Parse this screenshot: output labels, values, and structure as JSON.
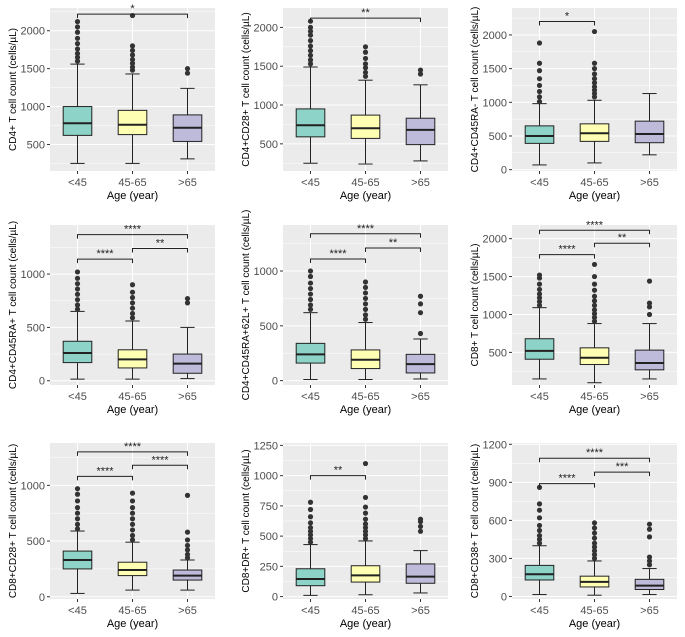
{
  "colors": {
    "panel_bg": "#ebebeb",
    "grid": "#ffffff",
    "box_fills": [
      "#8dd3c7",
      "#ffffb3",
      "#bebada"
    ],
    "ink": "#222222",
    "tick_text": "#4d4d4d"
  },
  "chart_data": [
    {
      "type": "box",
      "ylabel": "CD4+ T cell count (cells/µL)",
      "xlabel": "Age (year)",
      "categories": [
        "<45",
        "45-65",
        ">65"
      ],
      "ylim": [
        150,
        2300
      ],
      "yticks": [
        500,
        1000,
        1500,
        2000
      ],
      "boxes": [
        {
          "whisker_low": 250,
          "q1": 620,
          "median": 780,
          "q3": 1000,
          "whisker_high": 1560,
          "outliers": [
            1600,
            1650,
            1700,
            1760,
            1830,
            1900,
            1980,
            2050,
            2120
          ]
        },
        {
          "whisker_low": 250,
          "q1": 630,
          "median": 760,
          "q3": 950,
          "whisker_high": 1430,
          "outliers": [
            1480,
            1520,
            1570,
            1620,
            1680,
            1740,
            1800,
            2200
          ]
        },
        {
          "whisker_low": 310,
          "q1": 540,
          "median": 720,
          "q3": 890,
          "whisker_high": 1240,
          "outliers": [
            1440,
            1500
          ]
        }
      ],
      "significance": [
        {
          "from": 0,
          "to": 2,
          "label": "*",
          "level": 2220
        }
      ]
    },
    {
      "type": "box",
      "ylabel": "CD4+CD28+ T cell count (cells/µL)",
      "xlabel": "Age (year)",
      "categories": [
        "<45",
        "45-65",
        ">65"
      ],
      "ylim": [
        150,
        2250
      ],
      "yticks": [
        500,
        1000,
        1500,
        2000
      ],
      "boxes": [
        {
          "whisker_low": 250,
          "q1": 590,
          "median": 740,
          "q3": 950,
          "whisker_high": 1490,
          "outliers": [
            1530,
            1580,
            1640,
            1700,
            1760,
            1830,
            1900,
            1950,
            2000,
            2080
          ]
        },
        {
          "whisker_low": 240,
          "q1": 570,
          "median": 700,
          "q3": 870,
          "whisker_high": 1320,
          "outliers": [
            1370,
            1420,
            1480,
            1530,
            1600,
            1680,
            1750
          ]
        },
        {
          "whisker_low": 280,
          "q1": 490,
          "median": 680,
          "q3": 830,
          "whisker_high": 1260,
          "outliers": [
            1400,
            1450
          ]
        }
      ],
      "significance": [
        {
          "from": 0,
          "to": 2,
          "label": "**",
          "level": 2120
        }
      ]
    },
    {
      "type": "box",
      "ylabel": "CD4+CD45RA- T cell count (cells/µL)",
      "xlabel": "Age (year)",
      "categories": [
        "<45",
        "45-65",
        ">65"
      ],
      "ylim": [
        -20,
        2400
      ],
      "yticks": [
        0,
        500,
        1000,
        1500,
        2000
      ],
      "boxes": [
        {
          "whisker_low": 70,
          "q1": 390,
          "median": 500,
          "q3": 650,
          "whisker_high": 980,
          "outliers": [
            1010,
            1080,
            1160,
            1250,
            1350,
            1470,
            1580,
            1880
          ]
        },
        {
          "whisker_low": 100,
          "q1": 420,
          "median": 540,
          "q3": 680,
          "whisker_high": 1030,
          "outliers": [
            1080,
            1130,
            1180,
            1230,
            1290,
            1350,
            1420,
            1500,
            1580,
            2050
          ]
        },
        {
          "whisker_low": 220,
          "q1": 400,
          "median": 530,
          "q3": 720,
          "whisker_high": 1130,
          "outliers": []
        }
      ],
      "significance": [
        {
          "from": 0,
          "to": 1,
          "label": "*",
          "level": 2200
        }
      ]
    },
    {
      "type": "box",
      "ylabel": "CD4+CD45RA+ T cell count (cells/µL)",
      "xlabel": "Age (year)",
      "categories": [
        "<45",
        "45-65",
        ">65"
      ],
      "ylim": [
        -40,
        1460
      ],
      "yticks": [
        0,
        500,
        1000
      ],
      "boxes": [
        {
          "whisker_low": 15,
          "q1": 170,
          "median": 260,
          "q3": 370,
          "whisker_high": 650,
          "outliers": [
            670,
            710,
            760,
            810,
            860,
            910,
            960,
            1020
          ]
        },
        {
          "whisker_low": 15,
          "q1": 120,
          "median": 200,
          "q3": 290,
          "whisker_high": 560,
          "outliers": [
            590,
            630,
            680,
            730,
            780,
            830,
            900
          ]
        },
        {
          "whisker_low": 20,
          "q1": 70,
          "median": 160,
          "q3": 250,
          "whisker_high": 500,
          "outliers": [
            730,
            770
          ]
        }
      ],
      "significance": [
        {
          "from": 0,
          "to": 1,
          "label": "****",
          "level": 1140
        },
        {
          "from": 1,
          "to": 2,
          "label": "**",
          "level": 1240
        },
        {
          "from": 0,
          "to": 2,
          "label": "****",
          "level": 1370
        }
      ]
    },
    {
      "type": "box",
      "ylabel": "CD4+CD45RA+62L+ T cell count (cells/µL)",
      "xlabel": "Age (year)",
      "categories": [
        "<45",
        "45-65",
        ">65"
      ],
      "ylim": [
        -40,
        1420
      ],
      "yticks": [
        0,
        500,
        1000
      ],
      "boxes": [
        {
          "whisker_low": 10,
          "q1": 160,
          "median": 240,
          "q3": 340,
          "whisker_high": 620,
          "outliers": [
            650,
            690,
            740,
            790,
            840,
            890,
            950,
            1000
          ]
        },
        {
          "whisker_low": 10,
          "q1": 110,
          "median": 190,
          "q3": 280,
          "whisker_high": 530,
          "outliers": [
            560,
            600,
            650,
            700,
            750,
            800,
            850,
            900
          ]
        },
        {
          "whisker_low": 15,
          "q1": 70,
          "median": 150,
          "q3": 240,
          "whisker_high": 380,
          "outliers": [
            430,
            620,
            700,
            770
          ]
        }
      ],
      "significance": [
        {
          "from": 0,
          "to": 1,
          "label": "****",
          "level": 1110
        },
        {
          "from": 1,
          "to": 2,
          "label": "**",
          "level": 1210
        },
        {
          "from": 0,
          "to": 2,
          "label": "****",
          "level": 1340
        }
      ]
    },
    {
      "type": "box",
      "ylabel": "CD8+ T cell count (cells/µL)",
      "xlabel": "Age (year)",
      "categories": [
        "<45",
        "45-65",
        ">65"
      ],
      "ylim": [
        70,
        2180
      ],
      "yticks": [
        500,
        1000,
        1500,
        2000
      ],
      "boxes": [
        {
          "whisker_low": 150,
          "q1": 410,
          "median": 520,
          "q3": 680,
          "whisker_high": 1090,
          "outliers": [
            1120,
            1170,
            1220,
            1270,
            1330,
            1400,
            1480,
            1520
          ]
        },
        {
          "whisker_low": 100,
          "q1": 340,
          "median": 430,
          "q3": 560,
          "whisker_high": 880,
          "outliers": [
            910,
            960,
            1010,
            1060,
            1120,
            1180,
            1240,
            1320,
            1400,
            1500,
            1660
          ]
        },
        {
          "whisker_low": 150,
          "q1": 270,
          "median": 360,
          "q3": 530,
          "whisker_high": 880,
          "outliers": [
            1000,
            1100,
            1150,
            1440
          ]
        }
      ],
      "significance": [
        {
          "from": 0,
          "to": 1,
          "label": "****",
          "level": 1790
        },
        {
          "from": 1,
          "to": 2,
          "label": "**",
          "level": 1940
        },
        {
          "from": 0,
          "to": 2,
          "label": "****",
          "level": 2110
        }
      ]
    },
    {
      "type": "box",
      "ylabel": "CD8+CD28+ T cell count (cells/µL)",
      "xlabel": "Age (year)",
      "categories": [
        "<45",
        "45-65",
        ">65"
      ],
      "ylim": [
        -20,
        1380
      ],
      "yticks": [
        0,
        500,
        1000
      ],
      "boxes": [
        {
          "whisker_low": 30,
          "q1": 250,
          "median": 330,
          "q3": 410,
          "whisker_high": 590,
          "outliers": [
            610,
            650,
            700,
            750,
            800,
            860,
            920,
            970
          ]
        },
        {
          "whisker_low": 60,
          "q1": 190,
          "median": 240,
          "q3": 310,
          "whisker_high": 490,
          "outliers": [
            510,
            550,
            600,
            650,
            700,
            750,
            800,
            860,
            930
          ]
        },
        {
          "whisker_low": 60,
          "q1": 150,
          "median": 190,
          "q3": 240,
          "whisker_high": 330,
          "outliers": [
            350,
            380,
            420,
            460,
            510,
            580,
            910
          ]
        }
      ],
      "significance": [
        {
          "from": 0,
          "to": 1,
          "label": "****",
          "level": 1080
        },
        {
          "from": 1,
          "to": 2,
          "label": "****",
          "level": 1180
        },
        {
          "from": 0,
          "to": 2,
          "label": "****",
          "level": 1300
        }
      ]
    },
    {
      "type": "box",
      "ylabel": "CD8+DR+ T cell count (cells/µL)",
      "xlabel": "Age (year)",
      "categories": [
        "<45",
        "45-65",
        ">65"
      ],
      "ylim": [
        -20,
        1270
      ],
      "yticks": [
        0,
        250,
        500,
        750,
        1000,
        1250
      ],
      "boxes": [
        {
          "whisker_low": 10,
          "q1": 90,
          "median": 145,
          "q3": 230,
          "whisker_high": 430,
          "outliers": [
            450,
            480,
            510,
            540,
            570,
            610,
            660,
            720,
            780
          ]
        },
        {
          "whisker_low": 15,
          "q1": 120,
          "median": 175,
          "q3": 255,
          "whisker_high": 460,
          "outliers": [
            480,
            510,
            540,
            570,
            600,
            640,
            690,
            740,
            820,
            1100
          ]
        },
        {
          "whisker_low": 30,
          "q1": 110,
          "median": 165,
          "q3": 270,
          "whisker_high": 380,
          "outliers": [
            540,
            580,
            620,
            640
          ]
        }
      ],
      "significance": [
        {
          "from": 0,
          "to": 1,
          "label": "**",
          "level": 1000
        }
      ]
    },
    {
      "type": "box",
      "ylabel": "CD8+CD38+ T cell count (cells/µL)",
      "xlabel": "Age (year)",
      "categories": [
        "<45",
        "45-65",
        ">65"
      ],
      "ylim": [
        -20,
        1210
      ],
      "yticks": [
        0,
        300,
        600,
        900,
        1200
      ],
      "boxes": [
        {
          "whisker_low": 15,
          "q1": 130,
          "median": 175,
          "q3": 245,
          "whisker_high": 400,
          "outliers": [
            420,
            450,
            480,
            520,
            560,
            620,
            680,
            730,
            860
          ]
        },
        {
          "whisker_low": 10,
          "q1": 75,
          "median": 115,
          "q3": 160,
          "whisker_high": 280,
          "outliers": [
            300,
            330,
            360,
            390,
            420,
            460,
            500,
            540,
            580
          ]
        },
        {
          "whisker_low": 15,
          "q1": 55,
          "median": 85,
          "q3": 135,
          "whisker_high": 220,
          "outliers": [
            250,
            280,
            310,
            470,
            530,
            570
          ]
        }
      ],
      "significance": [
        {
          "from": 0,
          "to": 1,
          "label": "****",
          "level": 890
        },
        {
          "from": 1,
          "to": 2,
          "label": "***",
          "level": 980
        },
        {
          "from": 0,
          "to": 2,
          "label": "****",
          "level": 1090
        }
      ]
    }
  ]
}
